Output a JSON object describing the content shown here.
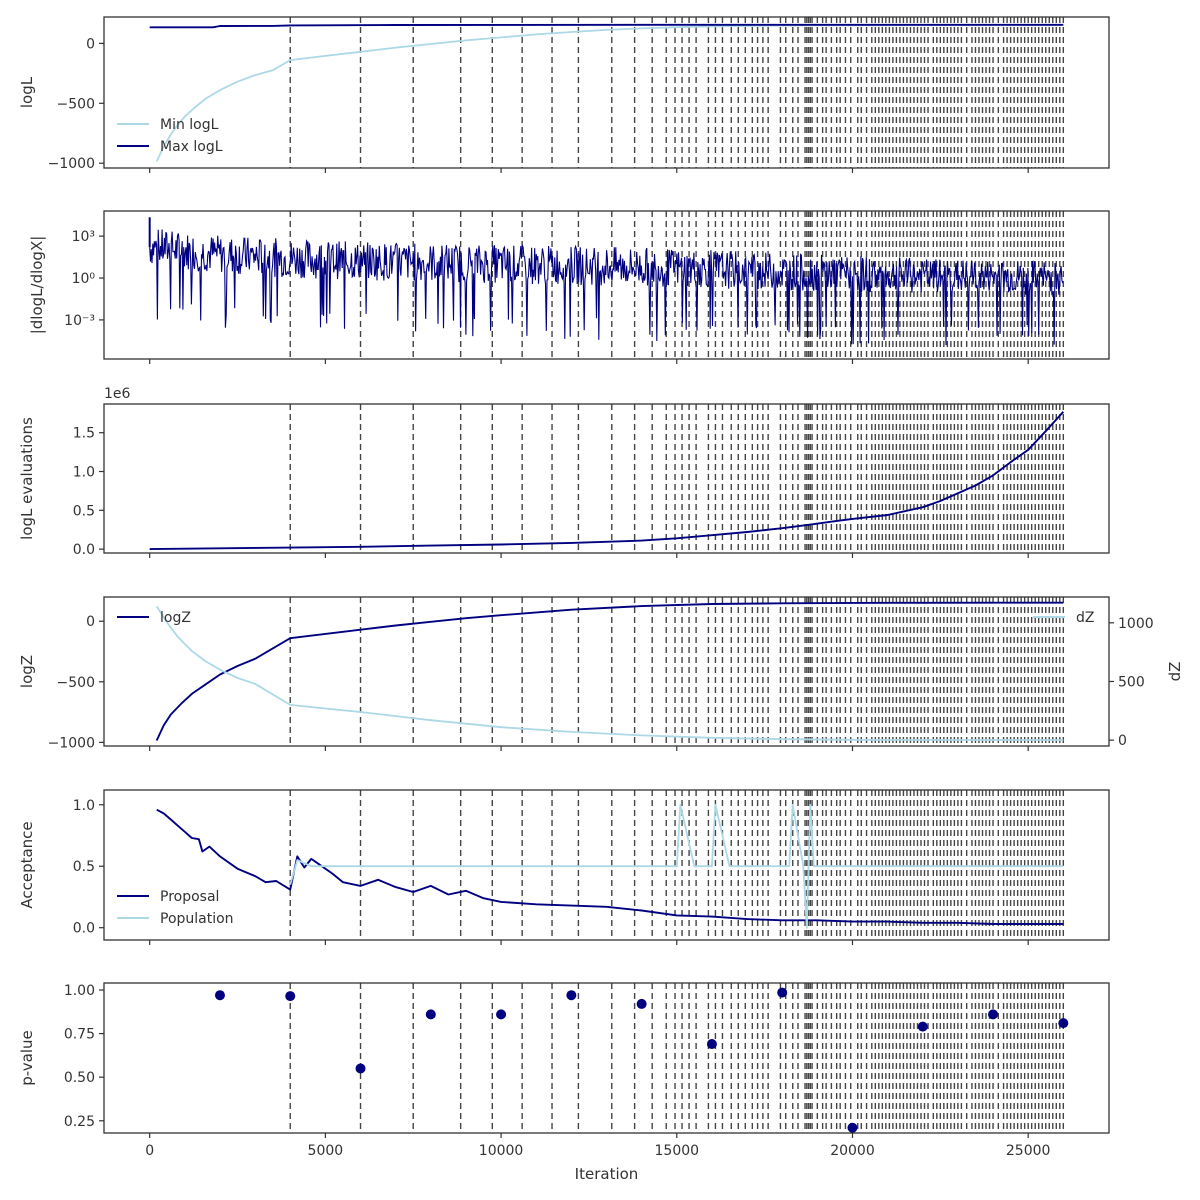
{
  "colors": {
    "dark": "#000080",
    "light": "#add8e6",
    "vline": "#444444",
    "frame": "#333333"
  },
  "xlabel": "Iteration",
  "x_ticks": [
    0,
    5000,
    10000,
    15000,
    20000,
    25000
  ],
  "x_range": [
    -1300,
    27300
  ],
  "vlines": [
    4000,
    6000,
    7500,
    8850,
    9750,
    10600,
    11450,
    12200,
    13150,
    13800,
    14300,
    14700,
    14950,
    15150,
    15350,
    15550,
    15900,
    16100,
    16300,
    16550,
    16750,
    16950,
    17150,
    17300,
    17450,
    17600,
    17950,
    18100,
    18300,
    18450,
    18650,
    18700,
    18750,
    18800,
    18850,
    19000,
    19150,
    19250,
    19400,
    19550,
    19650,
    19800,
    19950,
    20150,
    20250,
    20400,
    20550,
    20650,
    20750,
    20850,
    20950,
    21050,
    21150,
    21250,
    21350,
    21450,
    21550,
    21650,
    21750,
    21850,
    21950,
    22050,
    22150,
    22300,
    22400,
    22500,
    22600,
    22700,
    22800,
    22900,
    23000,
    23100,
    23250,
    23400,
    23500,
    23600,
    23700,
    23800,
    23900,
    24000,
    24150,
    24300,
    24400,
    24500,
    24600,
    24700,
    24800,
    24900,
    25000,
    25100,
    25200,
    25300,
    25400,
    25500,
    25600,
    25700,
    25800,
    25900,
    26000
  ],
  "chart_data": [
    {
      "type": "line",
      "ylabel": "logL",
      "ylim": [
        -1040,
        220
      ],
      "yticks": [
        0,
        -500,
        -1000
      ],
      "ytick_labels": [
        "0",
        "−500",
        "−1000"
      ],
      "legend": {
        "placement": "lower-left",
        "entries": [
          "Min logL",
          "Max logL"
        ]
      },
      "series": [
        {
          "name": "Min logL",
          "color": "#add8e6",
          "x": [
            200,
            400,
            600,
            800,
            1000,
            1300,
            1600,
            2000,
            2500,
            3000,
            3500,
            4000,
            5000,
            6000,
            7000,
            8000,
            9000,
            10000,
            11000,
            12000,
            13000,
            14000,
            15000,
            16000,
            17000,
            18000,
            19000,
            20000,
            22000,
            24000,
            26000
          ],
          "y": [
            -985,
            -860,
            -760,
            -680,
            -610,
            -530,
            -460,
            -390,
            -320,
            -265,
            -225,
            -140,
            -105,
            -70,
            -35,
            -5,
            25,
            50,
            75,
            95,
            112,
            125,
            135,
            142,
            146,
            148,
            150,
            151,
            152,
            153,
            153
          ]
        },
        {
          "name": "Max logL",
          "color": "#000080",
          "x": [
            0,
            1800,
            2000,
            3500,
            4000,
            7000,
            10000,
            16000,
            20000,
            26000
          ],
          "y": [
            134,
            134,
            145,
            146,
            150,
            153,
            154,
            155,
            155,
            155
          ]
        }
      ]
    },
    {
      "type": "line",
      "ylabel": "|dlogL/dlogX|",
      "yscale": "log",
      "ylim_log10": [
        -5.8,
        4.8
      ],
      "yticks_log10": [
        3,
        0,
        -3
      ],
      "ytick_labels": [
        "10³",
        "10⁰",
        "10⁻³"
      ],
      "envelope": {
        "color": "#000080",
        "x": [
          0,
          2000,
          4000,
          6000,
          8000,
          10000,
          12000,
          14000,
          16000,
          18000,
          20000,
          22000,
          24000,
          26000
        ],
        "upper_log10": [
          3.6,
          3.1,
          2.8,
          2.6,
          2.5,
          2.4,
          2.3,
          2.2,
          2.0,
          1.8,
          1.6,
          1.4,
          1.3,
          1.2
        ],
        "lower_log10": [
          -0.6,
          -1.2,
          -1.5,
          -1.6,
          -1.8,
          -1.9,
          -2.0,
          -2.1,
          -2.2,
          -2.3,
          -2.4,
          -2.5,
          -2.5,
          -2.6
        ]
      }
    },
    {
      "type": "line",
      "ylabel": "logL evaluations",
      "offset_label": "1e6",
      "ylim": [
        -0.05,
        1.87
      ],
      "yticks": [
        0.0,
        0.5,
        1.0,
        1.5
      ],
      "ytick_labels": [
        "0.0",
        "0.5",
        "1.0",
        "1.5"
      ],
      "series": [
        {
          "name": "",
          "color": "#000080",
          "x": [
            0,
            2000,
            4000,
            6000,
            8000,
            10000,
            12000,
            14000,
            15000,
            16000,
            17000,
            18000,
            18700,
            19500,
            20000,
            21000,
            22000,
            22500,
            23000,
            23500,
            24000,
            24500,
            25000,
            25500,
            26000
          ],
          "y": [
            0.0,
            0.01,
            0.02,
            0.03,
            0.045,
            0.06,
            0.08,
            0.11,
            0.14,
            0.18,
            0.22,
            0.27,
            0.31,
            0.36,
            0.39,
            0.44,
            0.54,
            0.62,
            0.72,
            0.82,
            0.95,
            1.12,
            1.28,
            1.52,
            1.77
          ]
        }
      ]
    },
    {
      "type": "line",
      "ylabel": "logZ",
      "ylabel_right": "dZ",
      "ylim": [
        -1030,
        200
      ],
      "yticks": [
        0,
        -500,
        -1000
      ],
      "ytick_labels": [
        "0",
        "−500",
        "−1000"
      ],
      "ylim_right": [
        -50,
        1220
      ],
      "yticks_right": [
        1000,
        500,
        0
      ],
      "ytick_labels_right": [
        "1000",
        "500",
        "0"
      ],
      "legend_left": "logZ",
      "legend_right": "dZ",
      "series": [
        {
          "name": "logZ",
          "color": "#000080",
          "x": [
            200,
            400,
            600,
            900,
            1200,
            1600,
            2000,
            2500,
            3000,
            4000,
            5000,
            6000,
            7000,
            8000,
            9000,
            10000,
            12000,
            14000,
            16000,
            18000,
            20000,
            22000,
            24000,
            26000
          ],
          "y": [
            -985,
            -860,
            -770,
            -680,
            -600,
            -520,
            -440,
            -370,
            -310,
            -140,
            -105,
            -70,
            -35,
            -5,
            25,
            50,
            95,
            125,
            142,
            148,
            151,
            152,
            153,
            153
          ]
        },
        {
          "name": "dZ",
          "color": "#add8e6",
          "axis": "right",
          "x": [
            200,
            500,
            800,
            1200,
            1600,
            2000,
            2500,
            3000,
            4000,
            5000,
            6000,
            7000,
            8000,
            9000,
            10000,
            12000,
            14000,
            16000,
            18000,
            20000,
            22000,
            24000,
            26000
          ],
          "y": [
            1140,
            1000,
            880,
            760,
            670,
            600,
            530,
            480,
            300,
            270,
            240,
            205,
            170,
            140,
            110,
            70,
            40,
            20,
            8,
            3,
            2,
            1,
            0
          ]
        }
      ]
    },
    {
      "type": "line",
      "ylabel": "Acceptance",
      "ylim": [
        -0.1,
        1.12
      ],
      "yticks": [
        1.0,
        0.5,
        0.0
      ],
      "ytick_labels": [
        "1.0",
        "0.5",
        "0.0"
      ],
      "legend": {
        "placement": "lower-left",
        "entries": [
          "Proposal",
          "Population"
        ]
      },
      "series": [
        {
          "name": "Proposal",
          "color": "#000080",
          "x": [
            200,
            400,
            600,
            800,
            1000,
            1200,
            1400,
            1500,
            1700,
            2000,
            2500,
            3000,
            3300,
            3600,
            4000,
            4200,
            4400,
            4600,
            4800,
            5200,
            5500,
            6000,
            6500,
            7000,
            7500,
            8000,
            8500,
            9000,
            9500,
            10000,
            11000,
            12000,
            13000,
            14000,
            15000,
            16000,
            17000,
            18000,
            19000,
            20000,
            21000,
            22000,
            23000,
            24000,
            25000,
            26000
          ],
          "y": [
            0.96,
            0.93,
            0.88,
            0.83,
            0.78,
            0.73,
            0.72,
            0.62,
            0.66,
            0.58,
            0.48,
            0.42,
            0.37,
            0.38,
            0.31,
            0.58,
            0.49,
            0.56,
            0.52,
            0.44,
            0.37,
            0.34,
            0.39,
            0.33,
            0.29,
            0.34,
            0.27,
            0.3,
            0.24,
            0.21,
            0.19,
            0.18,
            0.17,
            0.14,
            0.1,
            0.09,
            0.07,
            0.06,
            0.06,
            0.05,
            0.05,
            0.04,
            0.04,
            0.03,
            0.03,
            0.03
          ]
        },
        {
          "name": "Population",
          "color": "#add8e6",
          "x": [
            4000,
            4200,
            4600,
            5000,
            15000,
            15100,
            15500,
            16000,
            16100,
            16500,
            16600,
            18200,
            18300,
            18600,
            18700,
            18800,
            18900,
            26000
          ],
          "y": [
            0.35,
            0.55,
            0.5,
            0.5,
            0.5,
            1.0,
            0.5,
            0.5,
            1.0,
            0.5,
            0.5,
            0.5,
            1.0,
            0.5,
            0.0,
            1.0,
            0.5,
            0.5
          ]
        }
      ]
    },
    {
      "type": "scatter",
      "ylabel": "p-value",
      "ylim": [
        0.18,
        1.04
      ],
      "yticks": [
        1.0,
        0.75,
        0.5,
        0.25
      ],
      "ytick_labels": [
        "1.00",
        "0.75",
        "0.50",
        "0.25"
      ],
      "series": [
        {
          "name": "",
          "color": "#000080",
          "x": [
            2000,
            4000,
            6000,
            8000,
            10000,
            12000,
            14000,
            16000,
            18000,
            20000,
            22000,
            24000,
            26000
          ],
          "y": [
            0.97,
            0.965,
            0.55,
            0.86,
            0.86,
            0.97,
            0.92,
            0.69,
            0.985,
            0.21,
            0.79,
            0.86,
            0.81
          ]
        }
      ]
    }
  ]
}
